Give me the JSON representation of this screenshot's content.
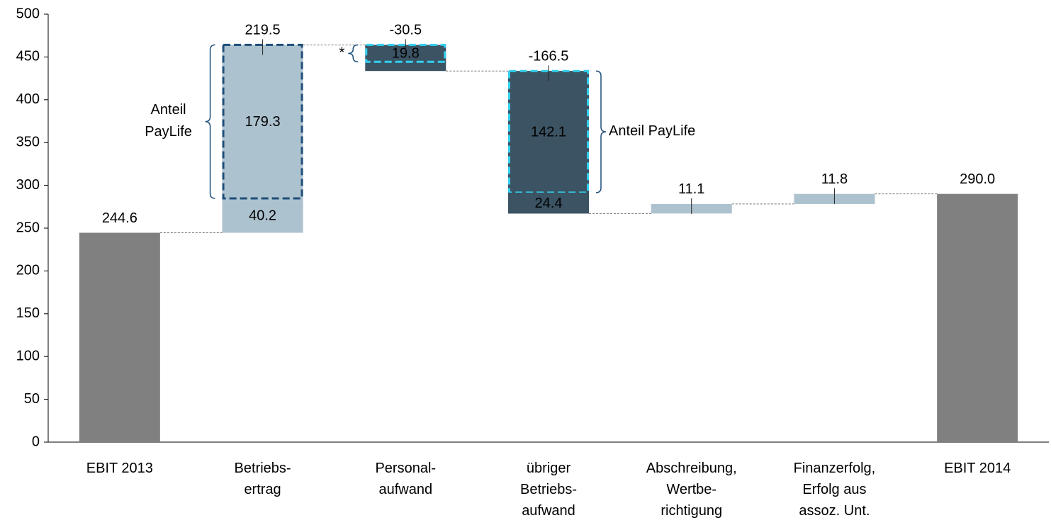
{
  "chart_data": {
    "type": "waterfall",
    "categories": [
      [
        "EBIT 2013"
      ],
      [
        "Betriebs-",
        "ertrag"
      ],
      [
        "Personal-",
        "aufwand"
      ],
      [
        "übriger",
        "Betriebs-",
        "aufwand"
      ],
      [
        "Abschreibung,",
        "Wertbe-",
        "richtigung"
      ],
      [
        "Finanzerfolg,",
        "Erfolg aus",
        "assoz. Unt."
      ],
      [
        "EBIT 2014"
      ]
    ],
    "values": [
      244.6,
      219.5,
      -30.5,
      -166.5,
      11.1,
      11.8,
      290.0
    ],
    "value_labels": [
      "244.6",
      "219.5",
      "-30.5",
      "-166.5",
      "11.1",
      "11.8",
      "290.0"
    ],
    "totals": [
      true,
      false,
      false,
      false,
      false,
      false,
      true
    ],
    "segments": [
      null,
      [
        40.2,
        179.3
      ],
      [
        19.8
      ],
      [
        142.1,
        24.4
      ],
      null,
      null,
      null
    ],
    "highlight": [
      null,
      [
        false,
        true
      ],
      [
        true
      ],
      [
        true,
        false
      ],
      null,
      null,
      null
    ],
    "annotations": [
      null,
      [
        "Anteil",
        "PayLife"
      ],
      [
        "*"
      ],
      [
        "Anteil PayLife"
      ],
      null,
      null,
      null
    ],
    "annotation_side": [
      null,
      "left",
      "left",
      "right",
      null,
      null,
      null
    ],
    "colors": {
      "total": "#808080",
      "increase": "#adc2cf",
      "decrease": "#3b5363",
      "highlight_increase": "#1f4e79",
      "highlight_decrease": "#33d0ee",
      "annotation": "#56798c"
    },
    "ylim": [
      0,
      500
    ],
    "yticks": [
      0,
      50,
      100,
      150,
      200,
      250,
      300,
      350,
      400,
      450,
      500
    ]
  }
}
